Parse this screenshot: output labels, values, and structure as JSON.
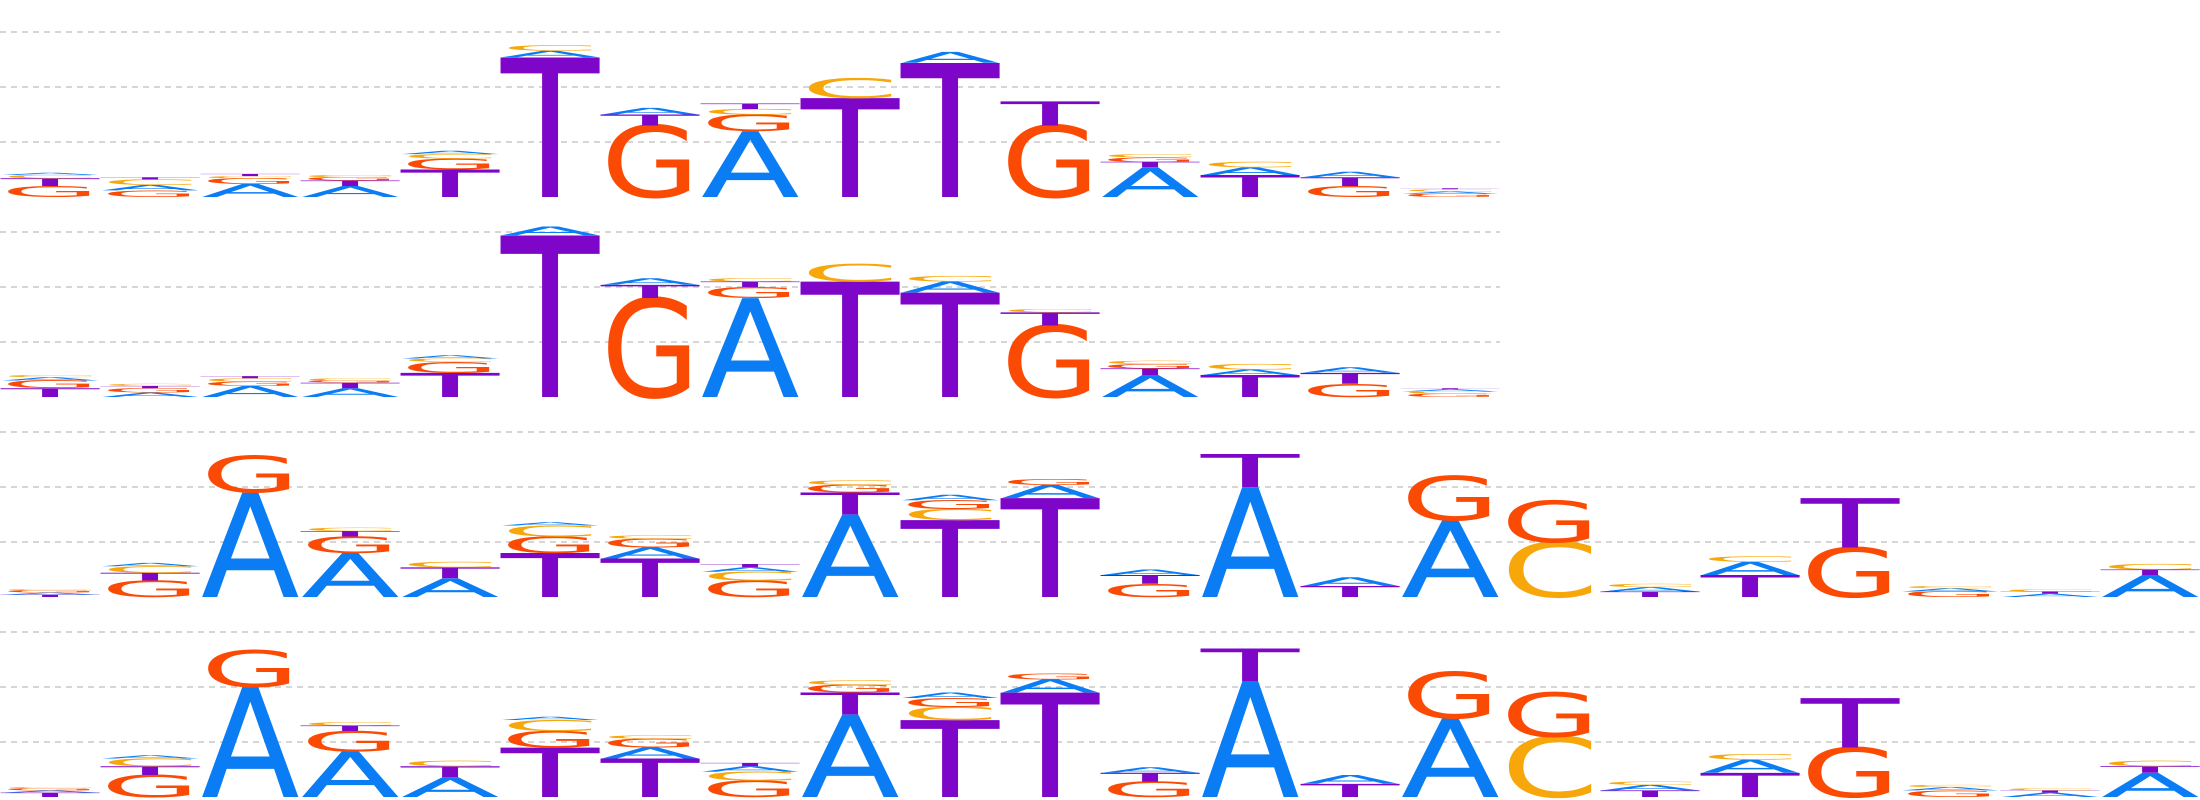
{
  "colors": {
    "A": "#0a7df5",
    "C": "#f7a70a",
    "G": "#fb4a04",
    "T": "#7d06c9"
  },
  "chart_data": [
    {
      "type": "sequence-logo",
      "y_guides": [
        0.5,
        1.0,
        1.5
      ],
      "positions": [
        {
          "T": 0.07,
          "A": 0.02,
          "C": 0.03,
          "G": 0.1
        },
        {
          "A": 0.05,
          "C": 0.05,
          "T": 0.02,
          "G": 0.06
        },
        {
          "A": 0.12,
          "C": 0.02,
          "G": 0.05,
          "T": 0.02
        },
        {
          "A": 0.1,
          "C": 0.02,
          "T": 0.05,
          "G": 0.03
        },
        {
          "T": 0.25,
          "G": 0.1,
          "C": 0.04,
          "A": 0.03
        },
        {
          "T": 1.27,
          "A": 0.06,
          "C": 0.05
        },
        {
          "G": 0.65,
          "T": 0.1,
          "A": 0.06
        },
        {
          "A": 0.6,
          "G": 0.15,
          "C": 0.05,
          "T": 0.05
        },
        {
          "T": 0.9,
          "C": 0.18
        },
        {
          "T": 1.22,
          "A": 0.1
        },
        {
          "G": 0.65,
          "T": 0.22
        },
        {
          "A": 0.27,
          "T": 0.05,
          "G": 0.04,
          "C": 0.03
        },
        {
          "T": 0.2,
          "A": 0.07,
          "C": 0.05
        },
        {
          "G": 0.1,
          "T": 0.08,
          "A": 0.05
        },
        {
          "G": 0.03,
          "A": 0.02,
          "C": 0.02,
          "T": 0.01
        }
      ]
    },
    {
      "type": "sequence-logo",
      "y_guides": [
        0.5,
        1.0,
        1.5
      ],
      "positions": [
        {
          "T": 0.08,
          "G": 0.07,
          "A": 0.03,
          "C": 0.02
        },
        {
          "A": 0.04,
          "G": 0.04,
          "T": 0.02,
          "C": 0.02
        },
        {
          "A": 0.1,
          "G": 0.04,
          "C": 0.03,
          "T": 0.02
        },
        {
          "A": 0.08,
          "T": 0.05,
          "G": 0.02,
          "C": 0.02
        },
        {
          "T": 0.22,
          "G": 0.1,
          "C": 0.03,
          "A": 0.03
        },
        {
          "T": 1.47,
          "A": 0.08
        },
        {
          "G": 0.9,
          "T": 0.12,
          "A": 0.06
        },
        {
          "A": 0.9,
          "G": 0.1,
          "T": 0.05,
          "C": 0.03
        },
        {
          "T": 1.05,
          "C": 0.16
        },
        {
          "T": 0.95,
          "A": 0.1,
          "C": 0.05
        },
        {
          "G": 0.65,
          "T": 0.12,
          "C": 0.03
        },
        {
          "A": 0.2,
          "T": 0.06,
          "G": 0.04,
          "C": 0.03
        },
        {
          "T": 0.2,
          "A": 0.05,
          "C": 0.05
        },
        {
          "G": 0.12,
          "T": 0.1,
          "A": 0.05
        },
        {
          "G": 0.03,
          "C": 0.02,
          "A": 0.02,
          "T": 0.01
        }
      ]
    },
    {
      "type": "sequence-logo",
      "y_guides": [
        0.5,
        1.0,
        1.5
      ],
      "positions": [
        {
          "T": 0.02,
          "A": 0.02,
          "G": 0.02,
          "C": 0.01
        },
        {
          "G": 0.15,
          "T": 0.07,
          "C": 0.06,
          "A": 0.03
        },
        {
          "A": 0.95,
          "G": 0.33
        },
        {
          "A": 0.4,
          "G": 0.15,
          "T": 0.05,
          "C": 0.03
        },
        {
          "A": 0.17,
          "T": 0.1,
          "C": 0.05
        },
        {
          "T": 0.4,
          "G": 0.15,
          "C": 0.1,
          "A": 0.03
        },
        {
          "T": 0.35,
          "A": 0.1,
          "G": 0.08,
          "C": 0.03
        },
        {
          "G": 0.15,
          "C": 0.08,
          "A": 0.04,
          "T": 0.03
        },
        {
          "A": 0.75,
          "T": 0.2,
          "G": 0.07,
          "C": 0.04
        },
        {
          "T": 0.7,
          "C": 0.1,
          "G": 0.08,
          "A": 0.05
        },
        {
          "T": 0.9,
          "A": 0.12,
          "G": 0.05
        },
        {
          "G": 0.12,
          "T": 0.08,
          "A": 0.05
        },
        {
          "A": 1.0,
          "T": 0.3
        },
        {
          "T": 0.1,
          "A": 0.08
        },
        {
          "A": 0.7,
          "G": 0.4
        },
        {
          "C": 0.5,
          "G": 0.38
        },
        {
          "T": 0.05,
          "A": 0.04,
          "C": 0.03
        },
        {
          "T": 0.2,
          "A": 0.12,
          "C": 0.05
        },
        {
          "G": 0.45,
          "T": 0.45
        },
        {
          "G": 0.05,
          "A": 0.03,
          "C": 0.02
        },
        {
          "A": 0.03,
          "T": 0.02,
          "C": 0.02
        },
        {
          "A": 0.2,
          "T": 0.05,
          "C": 0.05
        }
      ]
    },
    {
      "type": "sequence-logo",
      "y_guides": [
        0.5,
        1.0,
        1.5
      ],
      "positions": [
        {
          "T": 0.04,
          "A": 0.02,
          "G": 0.02,
          "C": 0.01
        },
        {
          "G": 0.2,
          "T": 0.08,
          "C": 0.07,
          "A": 0.03
        },
        {
          "A": 1.0,
          "G": 0.33
        },
        {
          "A": 0.42,
          "G": 0.18,
          "T": 0.05,
          "C": 0.03
        },
        {
          "A": 0.18,
          "T": 0.1,
          "C": 0.05
        },
        {
          "T": 0.45,
          "G": 0.15,
          "C": 0.1,
          "A": 0.03
        },
        {
          "T": 0.35,
          "A": 0.1,
          "G": 0.08,
          "C": 0.03
        },
        {
          "G": 0.15,
          "C": 0.08,
          "A": 0.05,
          "T": 0.03
        },
        {
          "A": 0.75,
          "T": 0.2,
          "G": 0.07,
          "C": 0.04
        },
        {
          "T": 0.7,
          "C": 0.12,
          "G": 0.08,
          "A": 0.05
        },
        {
          "T": 0.95,
          "A": 0.12,
          "G": 0.05
        },
        {
          "G": 0.14,
          "T": 0.08,
          "A": 0.05
        },
        {
          "A": 1.05,
          "T": 0.3
        },
        {
          "T": 0.12,
          "A": 0.08
        },
        {
          "A": 0.72,
          "G": 0.42
        },
        {
          "C": 0.55,
          "G": 0.4
        },
        {
          "T": 0.06,
          "A": 0.05,
          "C": 0.03
        },
        {
          "T": 0.22,
          "A": 0.12,
          "C": 0.05
        },
        {
          "G": 0.45,
          "T": 0.45
        },
        {
          "G": 0.06,
          "A": 0.03,
          "C": 0.02
        },
        {
          "A": 0.04,
          "T": 0.02,
          "C": 0.02
        },
        {
          "A": 0.22,
          "T": 0.06,
          "C": 0.05
        }
      ]
    }
  ]
}
